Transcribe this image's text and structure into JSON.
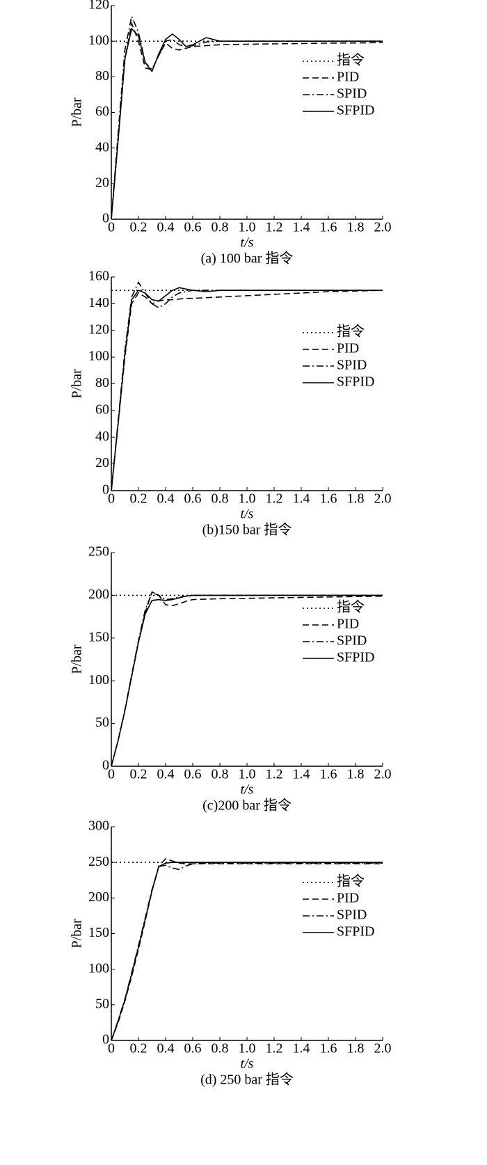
{
  "chart_data": [
    {
      "type": "line",
      "caption": "(a) 100 bar 指令",
      "xlabel": "t/s",
      "ylabel": "P/bar",
      "legend": "right",
      "x": [
        0,
        0.05,
        0.1,
        0.15,
        0.2,
        0.25,
        0.3,
        0.35,
        0.4,
        0.45,
        0.5,
        0.55,
        0.6,
        0.7,
        0.8,
        1.0,
        1.2,
        1.4,
        1.6,
        1.8,
        2.0
      ],
      "xlim": [
        0,
        2
      ],
      "ylim": [
        0,
        120
      ],
      "xticks": [
        0,
        0.2,
        0.4,
        0.6,
        0.8,
        {
          "value": 1,
          "label": "1.0"
        },
        1.2,
        1.4,
        1.6,
        1.8,
        {
          "value": 2,
          "label": "2.0"
        }
      ],
      "yticks": [
        0,
        20,
        40,
        60,
        80,
        100,
        120
      ],
      "series": [
        {
          "name": "指令",
          "color": "#000000",
          "dash": "dotted",
          "values": [
            100,
            100,
            100,
            100,
            100,
            100,
            100,
            100,
            100,
            100,
            100,
            100,
            100,
            100,
            100,
            100,
            100,
            100,
            100,
            100,
            100
          ]
        },
        {
          "name": "PID",
          "color": "#000000",
          "dash": "dashed",
          "values": [
            0,
            45,
            90,
            110,
            100,
            85,
            84,
            92,
            99,
            96,
            95,
            96,
            97,
            97.5,
            98,
            98.3,
            98.5,
            98.7,
            98.9,
            99,
            99.2
          ]
        },
        {
          "name": "SPID",
          "color": "#000000",
          "dash": "dashdot",
          "values": [
            0,
            48,
            95,
            114,
            105,
            88,
            84,
            92,
            100,
            101,
            98,
            97,
            97.5,
            99.5,
            100,
            100,
            100,
            100,
            100,
            100,
            100
          ]
        },
        {
          "name": "SFPID",
          "color": "#000000",
          "dash": "solid",
          "values": [
            0,
            44,
            90,
            107,
            103,
            88,
            83,
            93,
            101,
            104,
            101,
            97,
            98,
            102,
            100,
            100,
            100,
            100,
            100,
            100,
            100
          ]
        }
      ]
    },
    {
      "type": "line",
      "caption": "(b)150 bar 指令",
      "xlabel": "t/s",
      "ylabel": "P/bar",
      "legend": "right",
      "x": [
        0,
        0.05,
        0.1,
        0.15,
        0.2,
        0.25,
        0.3,
        0.35,
        0.4,
        0.45,
        0.5,
        0.55,
        0.6,
        0.7,
        0.8,
        1.0,
        1.2,
        1.4,
        1.6,
        1.8,
        2.0
      ],
      "xlim": [
        0,
        2
      ],
      "ylim": [
        0,
        160
      ],
      "xticks": [
        0,
        0.2,
        0.4,
        0.6,
        0.8,
        {
          "value": 1,
          "label": "1.0"
        },
        1.2,
        1.4,
        1.6,
        1.8,
        {
          "value": 2,
          "label": "2.0"
        }
      ],
      "yticks": [
        0,
        20,
        40,
        60,
        80,
        100,
        120,
        140,
        160
      ],
      "series": [
        {
          "name": "指令",
          "color": "#000000",
          "dash": "dotted",
          "values": [
            150,
            150,
            150,
            150,
            150,
            150,
            150,
            150,
            150,
            150,
            150,
            150,
            150,
            150,
            150,
            150,
            150,
            150,
            150,
            150,
            150
          ]
        },
        {
          "name": "PID",
          "color": "#000000",
          "dash": "dashed",
          "values": [
            0,
            50,
            100,
            140,
            148,
            145,
            140,
            142,
            143,
            143,
            143.5,
            144,
            144,
            144.5,
            145,
            146,
            147,
            148,
            149,
            149.5,
            150
          ]
        },
        {
          "name": "SPID",
          "color": "#000000",
          "dash": "dashdot",
          "values": [
            0,
            52,
            105,
            145,
            156,
            148,
            140,
            137,
            140,
            145,
            148,
            149,
            150,
            150,
            150,
            150,
            150,
            150,
            150,
            150,
            150
          ]
        },
        {
          "name": "SFPID",
          "color": "#000000",
          "dash": "solid",
          "values": [
            0,
            50,
            102,
            143,
            150,
            148,
            143,
            142,
            146,
            150,
            152,
            151,
            150,
            149,
            150,
            150,
            150,
            150,
            150,
            150,
            150
          ]
        }
      ]
    },
    {
      "type": "line",
      "caption": "(c)200 bar 指令",
      "xlabel": "t/s",
      "ylabel": "P/bar",
      "legend": "right",
      "x": [
        0,
        0.05,
        0.1,
        0.15,
        0.2,
        0.25,
        0.3,
        0.35,
        0.4,
        0.45,
        0.5,
        0.55,
        0.6,
        0.7,
        0.8,
        1.0,
        1.2,
        1.4,
        1.6,
        1.8,
        2.0
      ],
      "xlim": [
        0,
        2
      ],
      "ylim": [
        0,
        250
      ],
      "xticks": [
        0,
        0.2,
        0.4,
        0.6,
        0.8,
        {
          "value": 1,
          "label": "1.0"
        },
        1.2,
        1.4,
        1.6,
        1.8,
        {
          "value": 2,
          "label": "2.0"
        }
      ],
      "yticks": [
        0,
        50,
        100,
        150,
        200,
        250
      ],
      "series": [
        {
          "name": "指令",
          "color": "#000000",
          "dash": "dotted",
          "values": [
            200,
            200,
            200,
            200,
            200,
            200,
            200,
            200,
            200,
            200,
            200,
            200,
            200,
            200,
            200,
            200,
            200,
            200,
            200,
            200,
            200
          ]
        },
        {
          "name": "PID",
          "color": "#000000",
          "dash": "dashed",
          "values": [
            0,
            30,
            65,
            105,
            145,
            180,
            204,
            200,
            189,
            188,
            190,
            193,
            195,
            195.5,
            196,
            196.5,
            197,
            197.5,
            198,
            198.5,
            199
          ]
        },
        {
          "name": "SPID",
          "color": "#000000",
          "dash": "dashdot",
          "values": [
            0,
            30,
            66,
            107,
            147,
            183,
            203,
            200,
            195,
            196,
            198,
            199,
            200,
            200,
            200,
            200,
            200,
            200,
            200,
            200,
            200
          ]
        },
        {
          "name": "SFPID",
          "color": "#000000",
          "dash": "solid",
          "values": [
            0,
            30,
            65,
            105,
            145,
            178,
            194,
            195,
            194,
            195,
            197,
            199,
            200,
            200,
            200,
            200,
            200,
            200,
            200,
            200,
            200
          ]
        }
      ]
    },
    {
      "type": "line",
      "caption": "(d) 250 bar 指令",
      "xlabel": "t/s",
      "ylabel": "P/bar",
      "legend": "right",
      "x": [
        0,
        0.05,
        0.1,
        0.15,
        0.2,
        0.25,
        0.3,
        0.35,
        0.4,
        0.45,
        0.5,
        0.55,
        0.6,
        0.7,
        0.8,
        1.0,
        1.2,
        1.4,
        1.6,
        1.8,
        2.0
      ],
      "xlim": [
        0,
        2
      ],
      "ylim": [
        0,
        300
      ],
      "xticks": [
        0,
        0.2,
        0.4,
        0.6,
        0.8,
        {
          "value": 1,
          "label": "1.0"
        },
        1.2,
        1.4,
        1.6,
        1.8,
        {
          "value": 2,
          "label": "2.0"
        }
      ],
      "yticks": [
        0,
        50,
        100,
        150,
        200,
        250,
        300
      ],
      "series": [
        {
          "name": "指令",
          "color": "#000000",
          "dash": "dotted",
          "values": [
            250,
            250,
            250,
            250,
            250,
            250,
            250,
            250,
            250,
            250,
            250,
            250,
            250,
            250,
            250,
            250,
            250,
            250,
            250,
            250,
            250
          ]
        },
        {
          "name": "PID",
          "color": "#000000",
          "dash": "dashed",
          "values": [
            0,
            25,
            55,
            90,
            128,
            168,
            210,
            245,
            255,
            252,
            249,
            248,
            248,
            248,
            248,
            248,
            248,
            248,
            248,
            248,
            248
          ]
        },
        {
          "name": "SPID",
          "color": "#000000",
          "dash": "dashdot",
          "values": [
            0,
            28,
            58,
            95,
            133,
            172,
            212,
            244,
            246,
            242,
            240,
            245,
            248,
            249,
            249,
            249,
            249,
            249,
            249,
            249,
            249
          ]
        },
        {
          "name": "SFPID",
          "color": "#000000",
          "dash": "solid",
          "values": [
            0,
            27,
            57,
            93,
            131,
            170,
            210,
            244,
            249,
            250,
            250,
            250,
            250,
            250,
            250,
            250,
            250,
            250,
            250,
            250,
            250
          ]
        }
      ]
    }
  ]
}
